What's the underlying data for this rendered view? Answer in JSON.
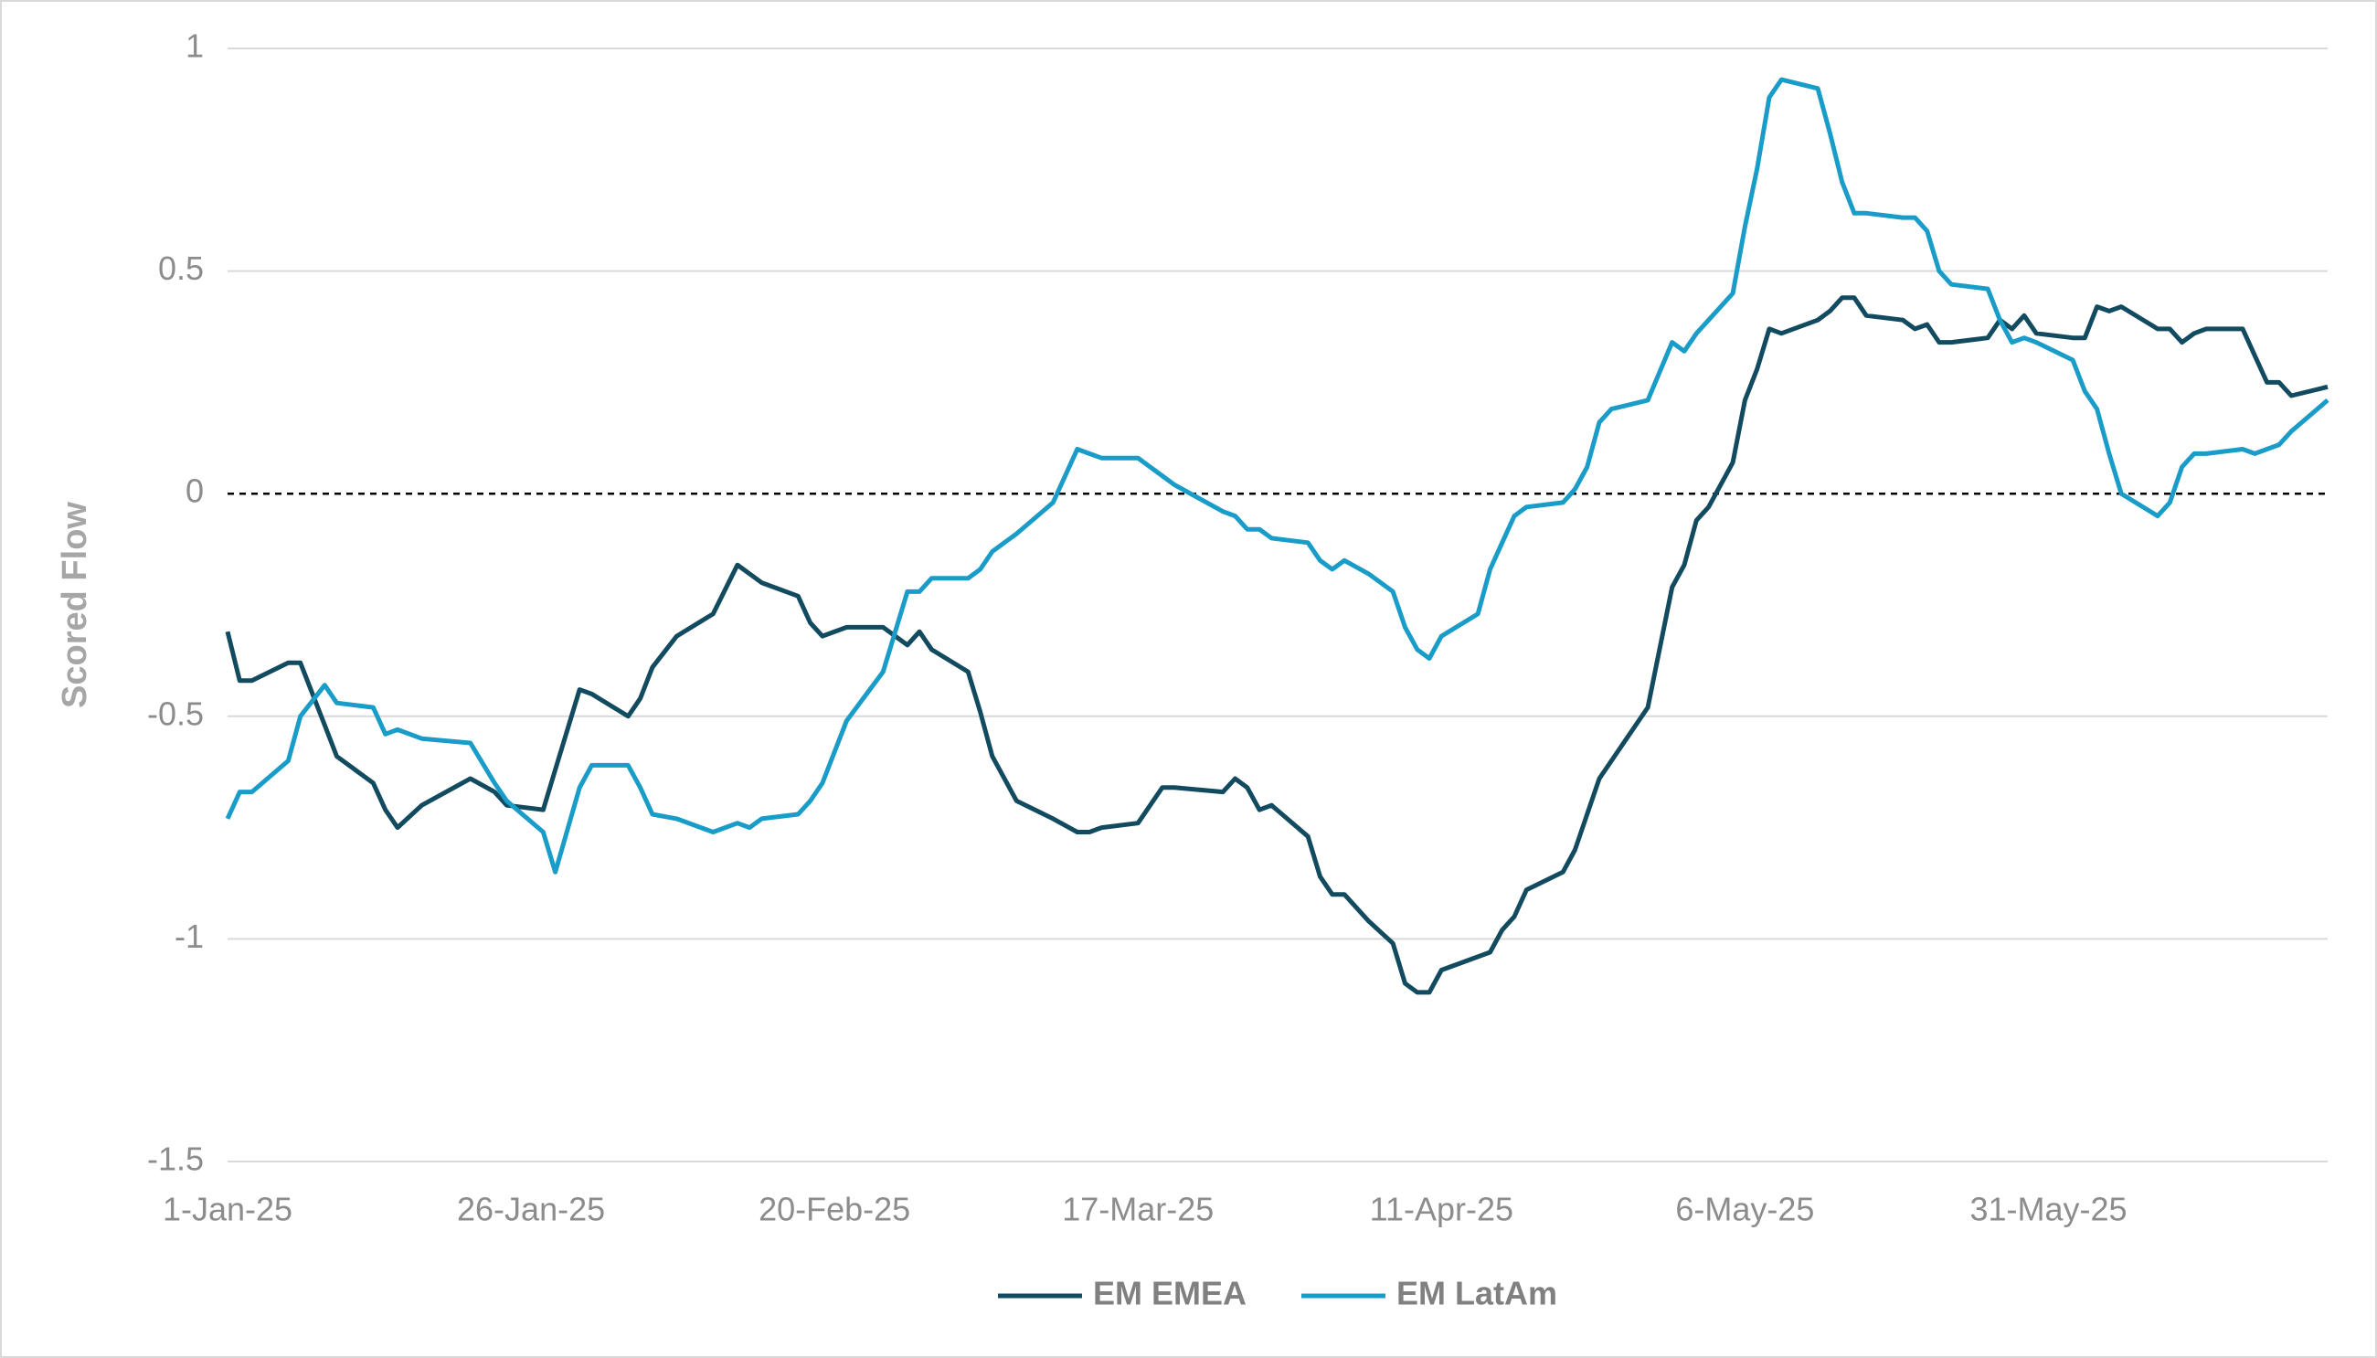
{
  "chart_data": {
    "type": "line",
    "y_label": "Scored Flow",
    "x": [
      "2025-01-01",
      "2025-01-02",
      "2025-01-03",
      "2025-01-06",
      "2025-01-07",
      "2025-01-09",
      "2025-01-10",
      "2025-01-13",
      "2025-01-14",
      "2025-01-15",
      "2025-01-17",
      "2025-01-21",
      "2025-01-23",
      "2025-01-24",
      "2025-01-27",
      "2025-01-28",
      "2025-01-30",
      "2025-01-31",
      "2025-02-03",
      "2025-02-04",
      "2025-02-05",
      "2025-02-07",
      "2025-02-10",
      "2025-02-12",
      "2025-02-13",
      "2025-02-14",
      "2025-02-17",
      "2025-02-18",
      "2025-02-19",
      "2025-02-21",
      "2025-02-24",
      "2025-02-26",
      "2025-02-27",
      "2025-02-28",
      "2025-03-03",
      "2025-03-04",
      "2025-03-05",
      "2025-03-07",
      "2025-03-10",
      "2025-03-12",
      "2025-03-13",
      "2025-03-14",
      "2025-03-17",
      "2025-03-19",
      "2025-03-20",
      "2025-03-24",
      "2025-03-25",
      "2025-03-26",
      "2025-03-27",
      "2025-03-28",
      "2025-03-31",
      "2025-04-01",
      "2025-04-02",
      "2025-04-03",
      "2025-04-05",
      "2025-04-07",
      "2025-04-08",
      "2025-04-09",
      "2025-04-10",
      "2025-04-11",
      "2025-04-14",
      "2025-04-15",
      "2025-04-16",
      "2025-04-17",
      "2025-04-18",
      "2025-04-21",
      "2025-04-22",
      "2025-04-23",
      "2025-04-24",
      "2025-04-25",
      "2025-04-28",
      "2025-04-30",
      "2025-05-01",
      "2025-05-02",
      "2025-05-03",
      "2025-05-05",
      "2025-05-06",
      "2025-05-07",
      "2025-05-08",
      "2025-05-09",
      "2025-05-12",
      "2025-05-13",
      "2025-05-14",
      "2025-05-15",
      "2025-05-16",
      "2025-05-19",
      "2025-05-20",
      "2025-05-21",
      "2025-05-22",
      "2025-05-23",
      "2025-05-26",
      "2025-05-27",
      "2025-05-28",
      "2025-05-29",
      "2025-05-30",
      "2025-06-02",
      "2025-06-03",
      "2025-06-04",
      "2025-06-05",
      "2025-06-06",
      "2025-06-09",
      "2025-06-10",
      "2025-06-11",
      "2025-06-12",
      "2025-06-13",
      "2025-06-16",
      "2025-06-17",
      "2025-06-18",
      "2025-06-19",
      "2025-06-20",
      "2025-06-23"
    ],
    "series": [
      {
        "name": "EM EMEA",
        "color": "#124b5f",
        "values": [
          -0.31,
          -0.42,
          -0.42,
          -0.38,
          -0.38,
          -0.52,
          -0.59,
          -0.65,
          -0.71,
          -0.75,
          -0.7,
          -0.64,
          -0.67,
          -0.7,
          -0.71,
          -0.62,
          -0.44,
          -0.45,
          -0.5,
          -0.46,
          -0.39,
          -0.32,
          -0.27,
          -0.16,
          -0.18,
          -0.2,
          -0.23,
          -0.29,
          -0.32,
          -0.3,
          -0.3,
          -0.34,
          -0.31,
          -0.35,
          -0.4,
          -0.49,
          -0.59,
          -0.69,
          -0.73,
          -0.76,
          -0.76,
          -0.75,
          -0.74,
          -0.66,
          -0.66,
          -0.67,
          -0.64,
          -0.66,
          -0.71,
          -0.7,
          -0.77,
          -0.86,
          -0.9,
          -0.9,
          -0.96,
          -1.01,
          -1.1,
          -1.12,
          -1.12,
          -1.07,
          -1.04,
          -1.03,
          -0.98,
          -0.95,
          -0.89,
          -0.85,
          -0.8,
          -0.72,
          -0.64,
          -0.6,
          -0.48,
          -0.21,
          -0.16,
          -0.06,
          -0.03,
          0.07,
          0.21,
          0.28,
          0.37,
          0.36,
          0.39,
          0.41,
          0.44,
          0.44,
          0.4,
          0.39,
          0.37,
          0.38,
          0.34,
          0.34,
          0.35,
          0.39,
          0.37,
          0.4,
          0.36,
          0.35,
          0.35,
          0.42,
          0.41,
          0.42,
          0.37,
          0.37,
          0.34,
          0.36,
          0.37,
          0.37,
          0.31,
          0.25,
          0.25,
          0.22,
          0.24
        ]
      },
      {
        "name": "EM LatAm",
        "color": "#1a9cc9",
        "values": [
          -0.73,
          -0.67,
          -0.67,
          -0.6,
          -0.5,
          -0.43,
          -0.47,
          -0.48,
          -0.54,
          -0.53,
          -0.55,
          -0.56,
          -0.65,
          -0.69,
          -0.76,
          -0.85,
          -0.66,
          -0.61,
          -0.61,
          -0.66,
          -0.72,
          -0.73,
          -0.76,
          -0.74,
          -0.75,
          -0.73,
          -0.72,
          -0.69,
          -0.65,
          -0.51,
          -0.4,
          -0.22,
          -0.22,
          -0.19,
          -0.19,
          -0.17,
          -0.13,
          -0.09,
          -0.02,
          0.1,
          0.09,
          0.08,
          0.08,
          0.04,
          0.02,
          -0.04,
          -0.05,
          -0.08,
          -0.08,
          -0.1,
          -0.11,
          -0.15,
          -0.17,
          -0.15,
          -0.18,
          -0.22,
          -0.3,
          -0.35,
          -0.37,
          -0.32,
          -0.27,
          -0.17,
          -0.11,
          -0.05,
          -0.03,
          -0.02,
          0.01,
          0.06,
          0.16,
          0.19,
          0.21,
          0.34,
          0.32,
          0.36,
          0.39,
          0.45,
          0.6,
          0.73,
          0.89,
          0.93,
          0.91,
          0.81,
          0.7,
          0.63,
          0.63,
          0.62,
          0.62,
          0.59,
          0.5,
          0.47,
          0.46,
          0.39,
          0.34,
          0.35,
          0.34,
          0.3,
          0.23,
          0.19,
          0.09,
          0.0,
          -0.05,
          -0.02,
          0.06,
          0.09,
          0.09,
          0.1,
          0.09,
          0.1,
          0.11,
          0.14,
          0.21
        ]
      }
    ],
    "xlim": [
      "2025-01-01",
      "2025-06-23"
    ],
    "xticks": [
      {
        "value": "2025-01-01",
        "label": "1-Jan-25"
      },
      {
        "value": "2025-01-26",
        "label": "26-Jan-25"
      },
      {
        "value": "2025-02-20",
        "label": "20-Feb-25"
      },
      {
        "value": "2025-03-17",
        "label": "17-Mar-25"
      },
      {
        "value": "2025-04-11",
        "label": "11-Apr-25"
      },
      {
        "value": "2025-05-06",
        "label": "6-May-25"
      },
      {
        "value": "2025-05-31",
        "label": "31-May-25"
      }
    ],
    "ylim": [
      -1.5,
      1
    ],
    "yticks": [
      {
        "value": 1,
        "label": "1"
      },
      {
        "value": 0.5,
        "label": "0.5"
      },
      0,
      {
        "value": -0.5,
        "label": "-0.5"
      },
      {
        "value": -1,
        "label": "-1"
      },
      {
        "value": -1.5,
        "label": "-1.5"
      }
    ],
    "grid": true,
    "zero_line": "dashed",
    "legend": "bottom"
  }
}
